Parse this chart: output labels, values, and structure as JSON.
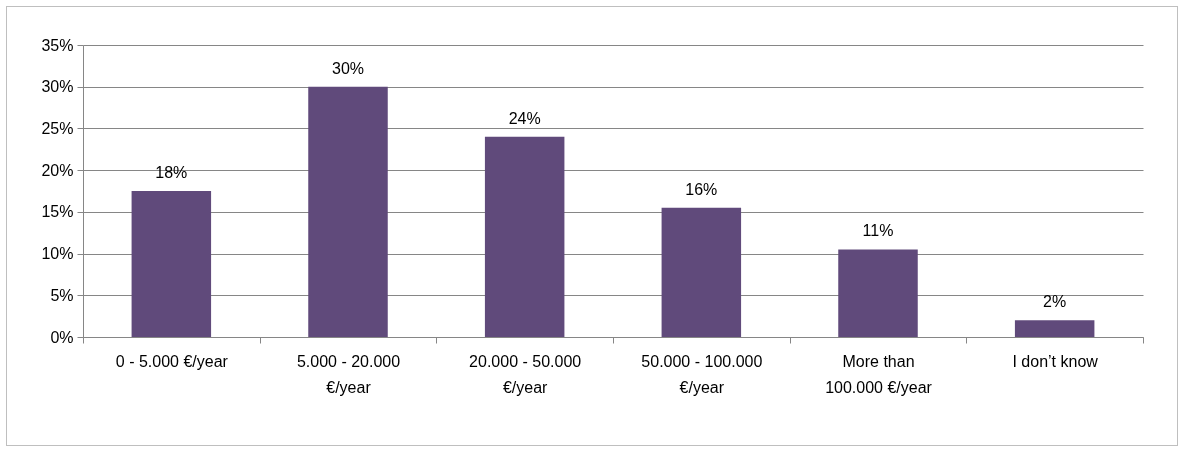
{
  "chart_data": {
    "type": "bar",
    "categories": [
      "0 - 5.000 €/year",
      "5.000 - 20.000 €/year",
      "20.000 - 50.000 €/year",
      "50.000 - 100.000 €/year",
      "More than 100.000 €/year",
      "I don’t know"
    ],
    "values": [
      17.5,
      30,
      24,
      15.5,
      10.5,
      2
    ],
    "value_labels": [
      "18%",
      "30%",
      "24%",
      "16%",
      "11%",
      "2%"
    ],
    "color": "#604a7b",
    "ylim": [
      0,
      35
    ],
    "yticks": [
      {
        "value": 0,
        "label": "0%"
      },
      {
        "value": 5,
        "label": "5%"
      },
      {
        "value": 10,
        "label": "10%"
      },
      {
        "value": 15,
        "label": "15%"
      },
      {
        "value": 20,
        "label": "20%"
      },
      {
        "value": 25,
        "label": "25%"
      },
      {
        "value": 30,
        "label": "30%"
      },
      {
        "value": 35,
        "label": "35%"
      }
    ],
    "grid": true
  }
}
